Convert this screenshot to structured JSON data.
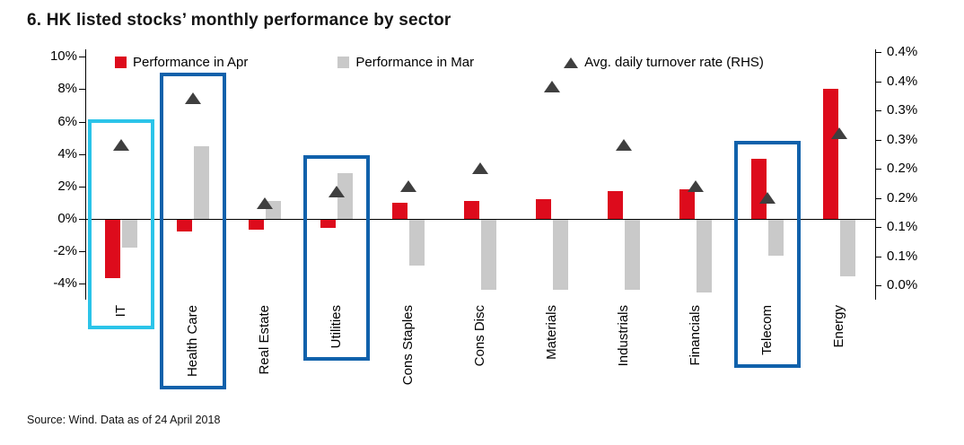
{
  "title": "6. HK listed stocks’ monthly performance by sector",
  "source": "Source: Wind. Data as of 24 April 2018",
  "colors": {
    "apr_bar": "#dd0b1c",
    "mar_bar": "#c9c9c9",
    "turnover_marker": "#3f3f3f",
    "highlight_cyan": "#2bc4e9",
    "highlight_blue": "#1061ab",
    "axis_text": "#000000"
  },
  "chart_data": {
    "type": "bar",
    "title": "6. HK listed stocks’ monthly performance by sector",
    "categories": [
      "IT",
      "Health Care",
      "Real Estate",
      "Utilities",
      "Cons Staples",
      "Cons Disc",
      "Materials",
      "Industrials",
      "Financials",
      "Telecom",
      "Energy"
    ],
    "series": [
      {
        "name": "Performance in Apr",
        "type": "bar",
        "marker": "square",
        "axis": "left",
        "color": "#dd0b1c",
        "values": [
          -3.6,
          -0.7,
          -0.6,
          -0.5,
          1.0,
          1.1,
          1.2,
          1.7,
          1.8,
          3.7,
          8.0
        ]
      },
      {
        "name": "Performance in Mar",
        "type": "bar",
        "marker": "square",
        "axis": "left",
        "color": "#c9c9c9",
        "values": [
          -1.7,
          4.5,
          1.1,
          2.8,
          -2.8,
          -4.3,
          -4.3,
          -4.3,
          -4.5,
          -2.2,
          -3.5
        ]
      },
      {
        "name": "Avg. daily turnover rate (RHS)",
        "type": "scatter",
        "marker": "triangle",
        "axis": "right",
        "color": "#3f3f3f",
        "values": [
          0.24,
          0.32,
          0.14,
          0.16,
          0.17,
          0.2,
          0.34,
          0.24,
          0.17,
          0.15,
          0.26
        ]
      }
    ],
    "left_axis": {
      "min": -4,
      "max": 10,
      "unit": "%",
      "tick_values": [
        10,
        8,
        6,
        4,
        2,
        0,
        -2,
        -4
      ],
      "tick_labels": [
        "10%",
        "8%",
        "6%",
        "4%",
        "2%",
        "0%",
        "-2%",
        "-4%"
      ]
    },
    "right_axis": {
      "min": 0,
      "max": 0.4,
      "unit": "%",
      "tick_labels": [
        "0.4%",
        "0.4%",
        "0.3%",
        "0.3%",
        "0.2%",
        "0.2%",
        "0.1%",
        "0.1%",
        "0.0%"
      ]
    },
    "legend_position": "top",
    "grid": false,
    "highlights": [
      {
        "category": "IT",
        "color": "#2bc4e9"
      },
      {
        "category": "Health Care",
        "color": "#1061ab"
      },
      {
        "category": "Utilities",
        "color": "#1061ab"
      },
      {
        "category": "Telecom",
        "color": "#1061ab"
      }
    ]
  }
}
